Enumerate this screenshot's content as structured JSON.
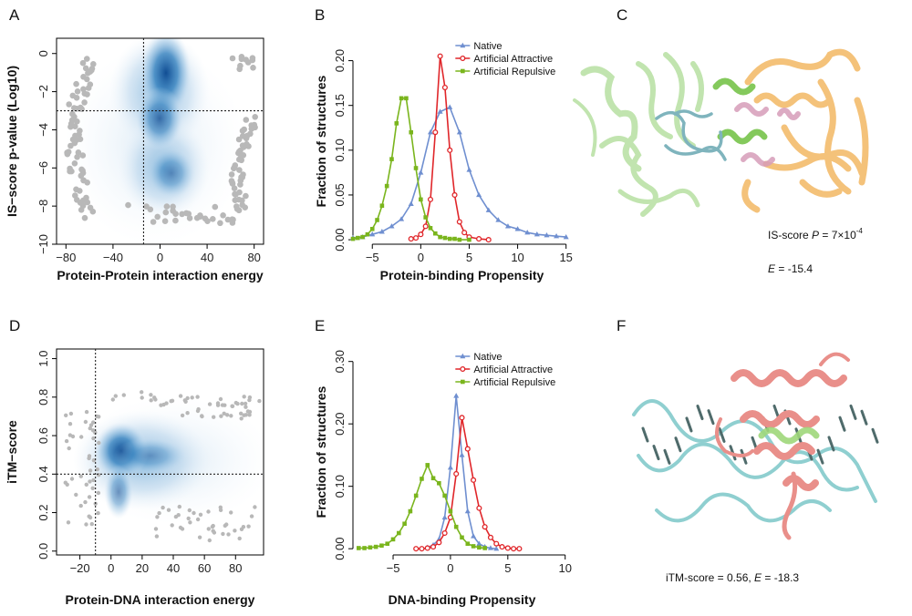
{
  "panels": {
    "A": "A",
    "B": "B",
    "C": "C",
    "D": "D",
    "E": "E",
    "F": "F"
  },
  "annotations": {
    "c_pvalue_prefix": "IS-score ",
    "c_pvalue_P": "P",
    "c_pvalue_mid": " = 7×10",
    "c_pvalue_exp": "-4",
    "c_energy_E": "E",
    "c_energy_val": " = -15.4",
    "f_text_prefix": "iTM-score = 0.56, ",
    "f_text_E": "E",
    "f_text_val": " = -18.3"
  },
  "colors": {
    "native": "#6f8fd0",
    "attractive": "#e0262a",
    "repulsive": "#7ab51d",
    "density": "#08519c",
    "scatter": "#b8b8b8"
  },
  "chart_data": [
    {
      "id": "A",
      "type": "heatmap",
      "xlabel": "Protein-Protein interaction energy",
      "ylabel": "IS−score p-value (Log10)",
      "xlim": [
        -88,
        88
      ],
      "ylim": [
        -10,
        0.8
      ],
      "xticks": [
        -80,
        -40,
        0,
        40,
        80
      ],
      "xtick_labels": [
        "−80",
        "−40",
        "0",
        "40",
        "80"
      ],
      "yticks": [
        0,
        -2,
        -4,
        -6,
        -8,
        -10
      ],
      "ytick_labels": [
        "0",
        "−2",
        "−4",
        "−6",
        "−8",
        "−10"
      ],
      "reference_lines": {
        "x": -14,
        "y": -3
      },
      "grid": false
    },
    {
      "id": "B",
      "type": "line",
      "xlabel": "Protein-binding Propensity",
      "ylabel": "Fraction of structures",
      "xlim": [
        -7,
        15.5
      ],
      "ylim": [
        -0.005,
        0.225
      ],
      "xticks": [
        -5,
        0,
        5,
        10,
        15
      ],
      "xtick_labels": [
        "−5",
        "0",
        "5",
        "10",
        "15"
      ],
      "yticks": [
        0,
        0.05,
        0.1,
        0.15,
        0.2
      ],
      "ytick_labels": [
        "0.00",
        "0.05",
        "0.10",
        "0.15",
        "0.20"
      ],
      "legend_position": "top-right",
      "series": [
        {
          "name": "Native",
          "marker": "triangle",
          "x": [
            -7,
            -6,
            -5,
            -4,
            -3,
            -2,
            -1,
            0,
            1,
            2,
            3,
            4,
            5,
            6,
            7,
            8,
            9,
            10,
            11,
            12,
            13,
            14,
            15
          ],
          "y": [
            0.002,
            0.003,
            0.006,
            0.009,
            0.015,
            0.023,
            0.04,
            0.075,
            0.12,
            0.143,
            0.148,
            0.12,
            0.078,
            0.05,
            0.033,
            0.022,
            0.015,
            0.012,
            0.008,
            0.006,
            0.005,
            0.004,
            0.003
          ]
        },
        {
          "name": "Artificial Attractive",
          "marker": "circle",
          "x": [
            -1,
            -0.5,
            0,
            0.5,
            1,
            1.5,
            2,
            2.5,
            3,
            3.5,
            4,
            4.5,
            5,
            6,
            7
          ],
          "y": [
            0.001,
            0.002,
            0.006,
            0.015,
            0.045,
            0.12,
            0.205,
            0.17,
            0.1,
            0.05,
            0.02,
            0.008,
            0.003,
            0.001,
            0.0
          ]
        },
        {
          "name": "Artificial Repulsive",
          "marker": "square",
          "x": [
            -7,
            -6.5,
            -6,
            -5.5,
            -5,
            -4.5,
            -4,
            -3.5,
            -3,
            -2.5,
            -2,
            -1.5,
            -1,
            -0.5,
            0,
            0.5,
            1,
            1.5,
            2,
            2.5,
            3,
            3.5,
            4,
            5
          ],
          "y": [
            0.001,
            0.002,
            0.003,
            0.006,
            0.012,
            0.022,
            0.038,
            0.06,
            0.09,
            0.13,
            0.158,
            0.158,
            0.12,
            0.08,
            0.045,
            0.025,
            0.013,
            0.007,
            0.003,
            0.002,
            0.001,
            0.001,
            0.0,
            0.0
          ]
        }
      ]
    },
    {
      "id": "D",
      "type": "heatmap",
      "xlabel": "Protein-DNA interaction energy",
      "ylabel": "iTM−score",
      "xlim": [
        -35,
        98
      ],
      "ylim": [
        -0.02,
        1.05
      ],
      "xticks": [
        -20,
        0,
        20,
        40,
        60,
        80
      ],
      "xtick_labels": [
        "−20",
        "0",
        "20",
        "40",
        "60",
        "80"
      ],
      "yticks": [
        0,
        0.2,
        0.4,
        0.6,
        0.8,
        1.0
      ],
      "ytick_labels": [
        "0.0",
        "0.2",
        "0.4",
        "0.6",
        "0.8",
        "1.0"
      ],
      "reference_lines": {
        "x": -10,
        "y": 0.4
      },
      "grid": false
    },
    {
      "id": "E",
      "type": "line",
      "xlabel": "DNA-binding Propensity",
      "ylabel": "Fraction of structures",
      "xlim": [
        -8.5,
        10.5
      ],
      "ylim": [
        -0.01,
        0.32
      ],
      "xticks": [
        -5,
        0,
        5,
        10
      ],
      "xtick_labels": [
        "−5",
        "0",
        "5",
        "10"
      ],
      "yticks": [
        0,
        0.1,
        0.2,
        0.3
      ],
      "ytick_labels": [
        "0.00",
        "0.10",
        "0.20",
        "0.30"
      ],
      "legend_position": "top-right",
      "series": [
        {
          "name": "Native",
          "marker": "triangle",
          "x": [
            -2,
            -1.5,
            -1,
            -0.5,
            0,
            0.5,
            1,
            1.5,
            2,
            2.5,
            3,
            3.5,
            4
          ],
          "y": [
            0.002,
            0.006,
            0.015,
            0.05,
            0.13,
            0.245,
            0.15,
            0.06,
            0.02,
            0.008,
            0.003,
            0.001,
            0.0
          ]
        },
        {
          "name": "Artificial Attractive",
          "marker": "circle",
          "x": [
            -3,
            -2.5,
            -2,
            -1.5,
            -1,
            -0.5,
            0,
            0.5,
            1,
            1.5,
            2,
            2.5,
            3,
            3.5,
            4,
            4.5,
            5,
            5.5,
            6
          ],
          "y": [
            0.0,
            0.0,
            0.001,
            0.003,
            0.01,
            0.025,
            0.05,
            0.12,
            0.21,
            0.16,
            0.11,
            0.065,
            0.035,
            0.018,
            0.008,
            0.003,
            0.001,
            0.0,
            0.0
          ]
        },
        {
          "name": "Artificial Repulsive",
          "marker": "square",
          "x": [
            -8,
            -7.5,
            -7,
            -6.5,
            -6,
            -5.5,
            -5,
            -4.5,
            -4,
            -3.5,
            -3,
            -2.5,
            -2,
            -1.5,
            -1,
            -0.5,
            0,
            0.5,
            1,
            1.5,
            2,
            2.5,
            3
          ],
          "y": [
            0.001,
            0.001,
            0.002,
            0.003,
            0.005,
            0.008,
            0.015,
            0.025,
            0.04,
            0.06,
            0.085,
            0.112,
            0.134,
            0.113,
            0.105,
            0.085,
            0.06,
            0.035,
            0.018,
            0.008,
            0.004,
            0.002,
            0.001
          ]
        }
      ]
    }
  ]
}
